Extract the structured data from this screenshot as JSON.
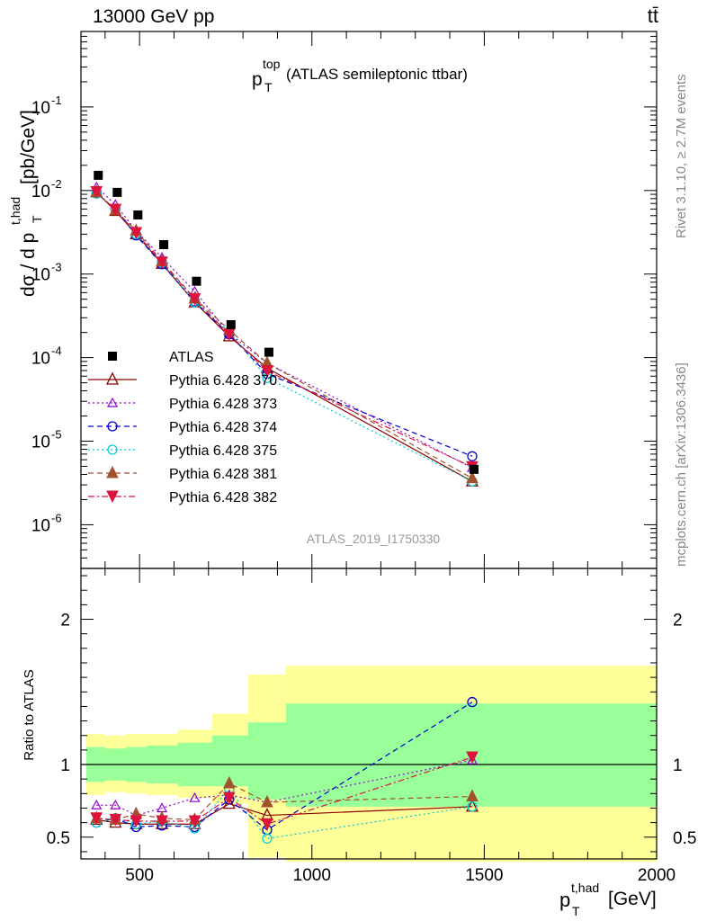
{
  "header": {
    "energy_label": "13000 GeV pp",
    "process_label": "tt̄"
  },
  "side_labels": {
    "rivet": "Rivet 3.1.10, ≥ 2.7M events",
    "mcplots": "mcplots.cern.ch [arXiv:1306.3436]"
  },
  "analysis_id": "ATLAS_2019_I1750330",
  "chart_data": [
    {
      "type": "scatter",
      "panel": "main",
      "title_main": "p",
      "title_sup": "top",
      "title_sub": "T",
      "title_rest": " (ATLAS semileptonic ttbar)",
      "ylabel": "dσ / d p_T^{t,had} [pb/GeV]",
      "yscale": "log",
      "ylim": [
        3e-07,
        0.8
      ],
      "xlim": [
        330,
        2000
      ],
      "y_tick_labels": [
        "10^{-6}",
        "10^{-5}",
        "10^{-4}",
        "10^{-3}",
        "10^{-2}",
        "10^{-1}"
      ],
      "legend_position": "middle-left",
      "x": [
        375,
        430,
        490,
        565,
        660,
        760,
        870,
        1465
      ],
      "data": {
        "name": "ATLAS",
        "values": [
          0.0152,
          0.0095,
          0.0051,
          0.00225,
          0.00082,
          0.000248,
          0.000116,
          4.6e-06
        ]
      },
      "series": [
        {
          "name": "Pythia 6.428 370",
          "color": "#8b0000",
          "marker": "triangle-open",
          "dash": "solid",
          "values": [
            0.0095,
            0.0057,
            0.003,
            0.00133,
            0.00046,
            0.00018,
            7.5e-05,
            3.3e-06
          ]
        },
        {
          "name": "Pythia 6.428 373",
          "color": "#9400d3",
          "marker": "triangle-open-small",
          "dash": "dot",
          "values": [
            0.011,
            0.0068,
            0.0033,
            0.00158,
            0.00062,
            0.000195,
            8.6e-05,
            4.8e-06
          ]
        },
        {
          "name": "Pythia 6.428 374",
          "color": "#0000cd",
          "marker": "circle-open",
          "dash": "dash",
          "values": [
            0.0092,
            0.006,
            0.0029,
            0.00131,
            0.00047,
            0.00019,
            6.4e-05,
            6.6e-06
          ]
        },
        {
          "name": "Pythia 6.428 375",
          "color": "#00ced1",
          "marker": "circle-open",
          "dash": "dot",
          "values": [
            0.0092,
            0.006,
            0.003,
            0.00138,
            0.00046,
            0.000205,
            5.7e-05,
            3.3e-06
          ]
        },
        {
          "name": "Pythia 6.428 381",
          "color": "#a0522d",
          "marker": "triangle-filled",
          "dash": "dash",
          "values": [
            0.0095,
            0.0058,
            0.0033,
            0.00142,
            0.00051,
            0.000215,
            8.6e-05,
            3.6e-06
          ]
        },
        {
          "name": "Pythia 6.428 382",
          "color": "#dc143c",
          "marker": "triangle-down-filled",
          "dash": "dashdot",
          "values": [
            0.0096,
            0.0059,
            0.0031,
            0.00138,
            0.0005,
            0.00019,
            6.9e-05,
            4.9e-06
          ]
        }
      ]
    },
    {
      "type": "scatter",
      "panel": "ratio",
      "ylabel": "Ratio to ATLAS",
      "ylim": [
        0.35,
        2.35
      ],
      "xlim": [
        330,
        2000
      ],
      "y_tick_labels": [
        "0.5",
        "1",
        "2"
      ],
      "x_tick_labels": [
        "500",
        "1000",
        "1500",
        "2000"
      ],
      "xlabel_main": "p",
      "xlabel_sup": "t,had",
      "xlabel_sub": "T",
      "xlabel_rest": " [GeV]",
      "bins": [
        {
          "lo": 345,
          "hi": 400,
          "green": [
            0.88,
            1.12
          ],
          "yellow": [
            0.79,
            1.21
          ]
        },
        {
          "lo": 400,
          "hi": 460,
          "green": [
            0.89,
            1.11
          ],
          "yellow": [
            0.81,
            1.2
          ]
        },
        {
          "lo": 460,
          "hi": 520,
          "green": [
            0.88,
            1.12
          ],
          "yellow": [
            0.8,
            1.21
          ]
        },
        {
          "lo": 520,
          "hi": 610,
          "green": [
            0.87,
            1.13
          ],
          "yellow": [
            0.79,
            1.21
          ]
        },
        {
          "lo": 610,
          "hi": 710,
          "green": [
            0.85,
            1.15
          ],
          "yellow": [
            0.77,
            1.24
          ]
        },
        {
          "lo": 710,
          "hi": 815,
          "green": [
            0.85,
            1.2
          ],
          "yellow": [
            0.73,
            1.35
          ]
        },
        {
          "lo": 815,
          "hi": 925,
          "green": [
            0.76,
            1.29
          ],
          "yellow": [
            0.36,
            1.62
          ]
        },
        {
          "lo": 925,
          "hi": 2000,
          "green": [
            0.71,
            1.42
          ],
          "yellow": [
            0.33,
            1.68
          ]
        }
      ],
      "reference_line": 1.0,
      "series": [
        {
          "name": "Pythia 6.428 370",
          "values": [
            0.62,
            0.6,
            0.59,
            0.59,
            0.59,
            0.73,
            0.65,
            0.71
          ]
        },
        {
          "name": "Pythia 6.428 373",
          "values": [
            0.72,
            0.72,
            0.65,
            0.7,
            0.77,
            0.79,
            0.74,
            1.03
          ]
        },
        {
          "name": "Pythia 6.428 374",
          "values": [
            0.6,
            0.63,
            0.57,
            0.58,
            0.57,
            0.76,
            0.55,
            1.43
          ]
        },
        {
          "name": "Pythia 6.428 375",
          "values": [
            0.6,
            0.63,
            0.59,
            0.61,
            0.56,
            0.83,
            0.49,
            0.71
          ]
        },
        {
          "name": "Pythia 6.428 381",
          "values": [
            0.63,
            0.62,
            0.66,
            0.63,
            0.62,
            0.87,
            0.74,
            0.78
          ]
        },
        {
          "name": "Pythia 6.428 382",
          "values": [
            0.63,
            0.62,
            0.61,
            0.61,
            0.61,
            0.77,
            0.59,
            1.05
          ]
        }
      ]
    }
  ]
}
